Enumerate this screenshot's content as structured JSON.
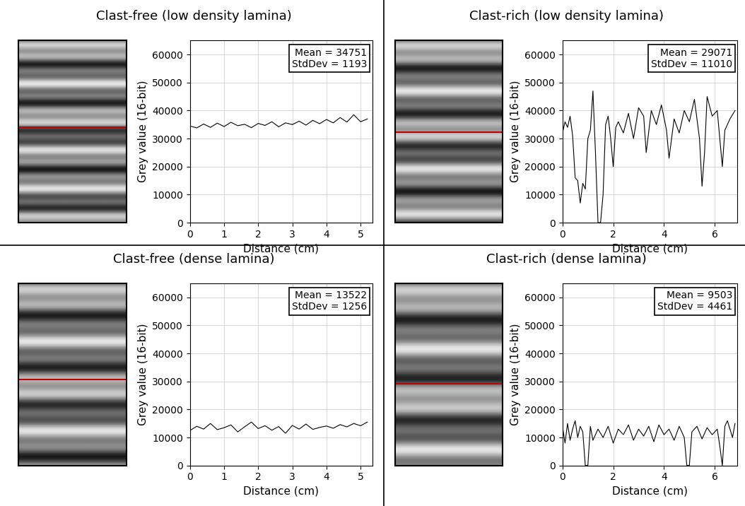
{
  "chart_data": [
    {
      "type": "line",
      "title": "Clast-free (low density lamina)",
      "xlabel": "Distance (cm)",
      "ylabel": "Grey value (16-bit)",
      "annotation": "Mean = 34751\nStdDev = 1193",
      "color": "#000000",
      "grid": true,
      "xlim": [
        0,
        5.35
      ],
      "ylim": [
        0,
        65000
      ],
      "xticks": [
        0,
        1,
        2,
        3,
        4,
        5
      ],
      "yticks": [
        0,
        10000,
        20000,
        30000,
        40000,
        50000,
        60000
      ],
      "x": [
        0,
        0.2,
        0.4,
        0.6,
        0.8,
        1.0,
        1.2,
        1.4,
        1.6,
        1.8,
        2.0,
        2.2,
        2.4,
        2.6,
        2.8,
        3.0,
        3.2,
        3.4,
        3.6,
        3.8,
        4.0,
        4.2,
        4.4,
        4.6,
        4.8,
        5.0,
        5.2
      ],
      "values": [
        34500,
        33800,
        35200,
        34000,
        35500,
        34300,
        35800,
        34600,
        35100,
        33900,
        35400,
        34700,
        36000,
        34200,
        35600,
        35000,
        36200,
        34800,
        36500,
        35300,
        36800,
        35600,
        37500,
        35900,
        38500,
        36000,
        37000
      ]
    },
    {
      "type": "line",
      "title": "Clast-rich (low density lamina)",
      "xlabel": "Distance (cm)",
      "ylabel": "Grey value (16-bit)",
      "annotation": "Mean = 29071\nStdDev = 11010",
      "color": "#000000",
      "grid": true,
      "xlim": [
        0,
        6.9
      ],
      "ylim": [
        0,
        65000
      ],
      "xticks": [
        0,
        2,
        4,
        6
      ],
      "yticks": [
        0,
        10000,
        20000,
        30000,
        40000,
        50000,
        60000
      ],
      "x": [
        0,
        0.1,
        0.2,
        0.3,
        0.4,
        0.5,
        0.6,
        0.7,
        0.8,
        0.9,
        1.0,
        1.1,
        1.2,
        1.3,
        1.4,
        1.5,
        1.6,
        1.7,
        1.8,
        1.9,
        2.0,
        2.1,
        2.2,
        2.4,
        2.6,
        2.8,
        3.0,
        3.2,
        3.3,
        3.5,
        3.7,
        3.9,
        4.1,
        4.2,
        4.4,
        4.6,
        4.8,
        5.0,
        5.2,
        5.4,
        5.5,
        5.6,
        5.7,
        5.9,
        6.1,
        6.3,
        6.4,
        6.6,
        6.8
      ],
      "values": [
        32000,
        36000,
        34000,
        38000,
        31000,
        16000,
        15000,
        7000,
        14000,
        12000,
        30000,
        33000,
        47000,
        25000,
        0,
        0,
        10000,
        35000,
        38000,
        30000,
        20000,
        34000,
        36000,
        32000,
        39000,
        30000,
        41000,
        38000,
        25000,
        40000,
        35000,
        42000,
        33000,
        23000,
        37000,
        32000,
        40000,
        36000,
        44000,
        30000,
        13000,
        25000,
        45000,
        38000,
        40000,
        20000,
        33000,
        37000,
        40000
      ]
    },
    {
      "type": "line",
      "title": "Clast-free (dense lamina)",
      "xlabel": "Distance (cm)",
      "ylabel": "Grey value (16-bit)",
      "annotation": "Mean = 13522\nStdDev = 1256",
      "color": "#000000",
      "grid": true,
      "xlim": [
        0,
        5.35
      ],
      "ylim": [
        0,
        65000
      ],
      "xticks": [
        0,
        1,
        2,
        3,
        4,
        5
      ],
      "yticks": [
        0,
        10000,
        20000,
        30000,
        40000,
        50000,
        60000
      ],
      "x": [
        0,
        0.2,
        0.4,
        0.6,
        0.8,
        1.0,
        1.2,
        1.4,
        1.6,
        1.8,
        2.0,
        2.2,
        2.4,
        2.6,
        2.8,
        3.0,
        3.2,
        3.4,
        3.6,
        3.8,
        4.0,
        4.2,
        4.4,
        4.6,
        4.8,
        5.0,
        5.2
      ],
      "values": [
        12500,
        14000,
        13000,
        15000,
        12800,
        13500,
        14500,
        12000,
        13800,
        15500,
        13200,
        14200,
        12600,
        13900,
        11500,
        14300,
        13000,
        14800,
        12900,
        13600,
        14100,
        13300,
        14600,
        13800,
        15000,
        14200,
        15500
      ]
    },
    {
      "type": "line",
      "title": "Clast-rich (dense lamina)",
      "xlabel": "Distance (cm)",
      "ylabel": "Grey value (16-bit)",
      "annotation": "Mean = 9503\nStdDev = 4461",
      "color": "#000000",
      "grid": true,
      "xlim": [
        0,
        6.9
      ],
      "ylim": [
        0,
        65000
      ],
      "xticks": [
        0,
        2,
        4,
        6
      ],
      "yticks": [
        0,
        10000,
        20000,
        30000,
        40000,
        50000,
        60000
      ],
      "x": [
        0,
        0.1,
        0.2,
        0.3,
        0.4,
        0.5,
        0.6,
        0.7,
        0.8,
        0.9,
        1.0,
        1.1,
        1.2,
        1.4,
        1.6,
        1.8,
        2.0,
        2.2,
        2.4,
        2.6,
        2.8,
        3.0,
        3.2,
        3.4,
        3.6,
        3.8,
        4.0,
        4.2,
        4.4,
        4.6,
        4.8,
        4.9,
        5.0,
        5.1,
        5.3,
        5.5,
        5.7,
        5.9,
        6.1,
        6.2,
        6.3,
        6.4,
        6.5,
        6.7,
        6.8
      ],
      "values": [
        14000,
        8000,
        15000,
        9000,
        13000,
        16000,
        10000,
        14000,
        12000,
        0,
        0,
        14000,
        9000,
        13000,
        10000,
        14000,
        8000,
        13000,
        11000,
        14500,
        9000,
        13000,
        10500,
        14000,
        8500,
        14500,
        11000,
        13000,
        9000,
        14000,
        10000,
        0,
        0,
        12000,
        14000,
        9500,
        13500,
        11000,
        13000,
        7000,
        0,
        14000,
        16000,
        10000,
        15000
      ]
    }
  ]
}
